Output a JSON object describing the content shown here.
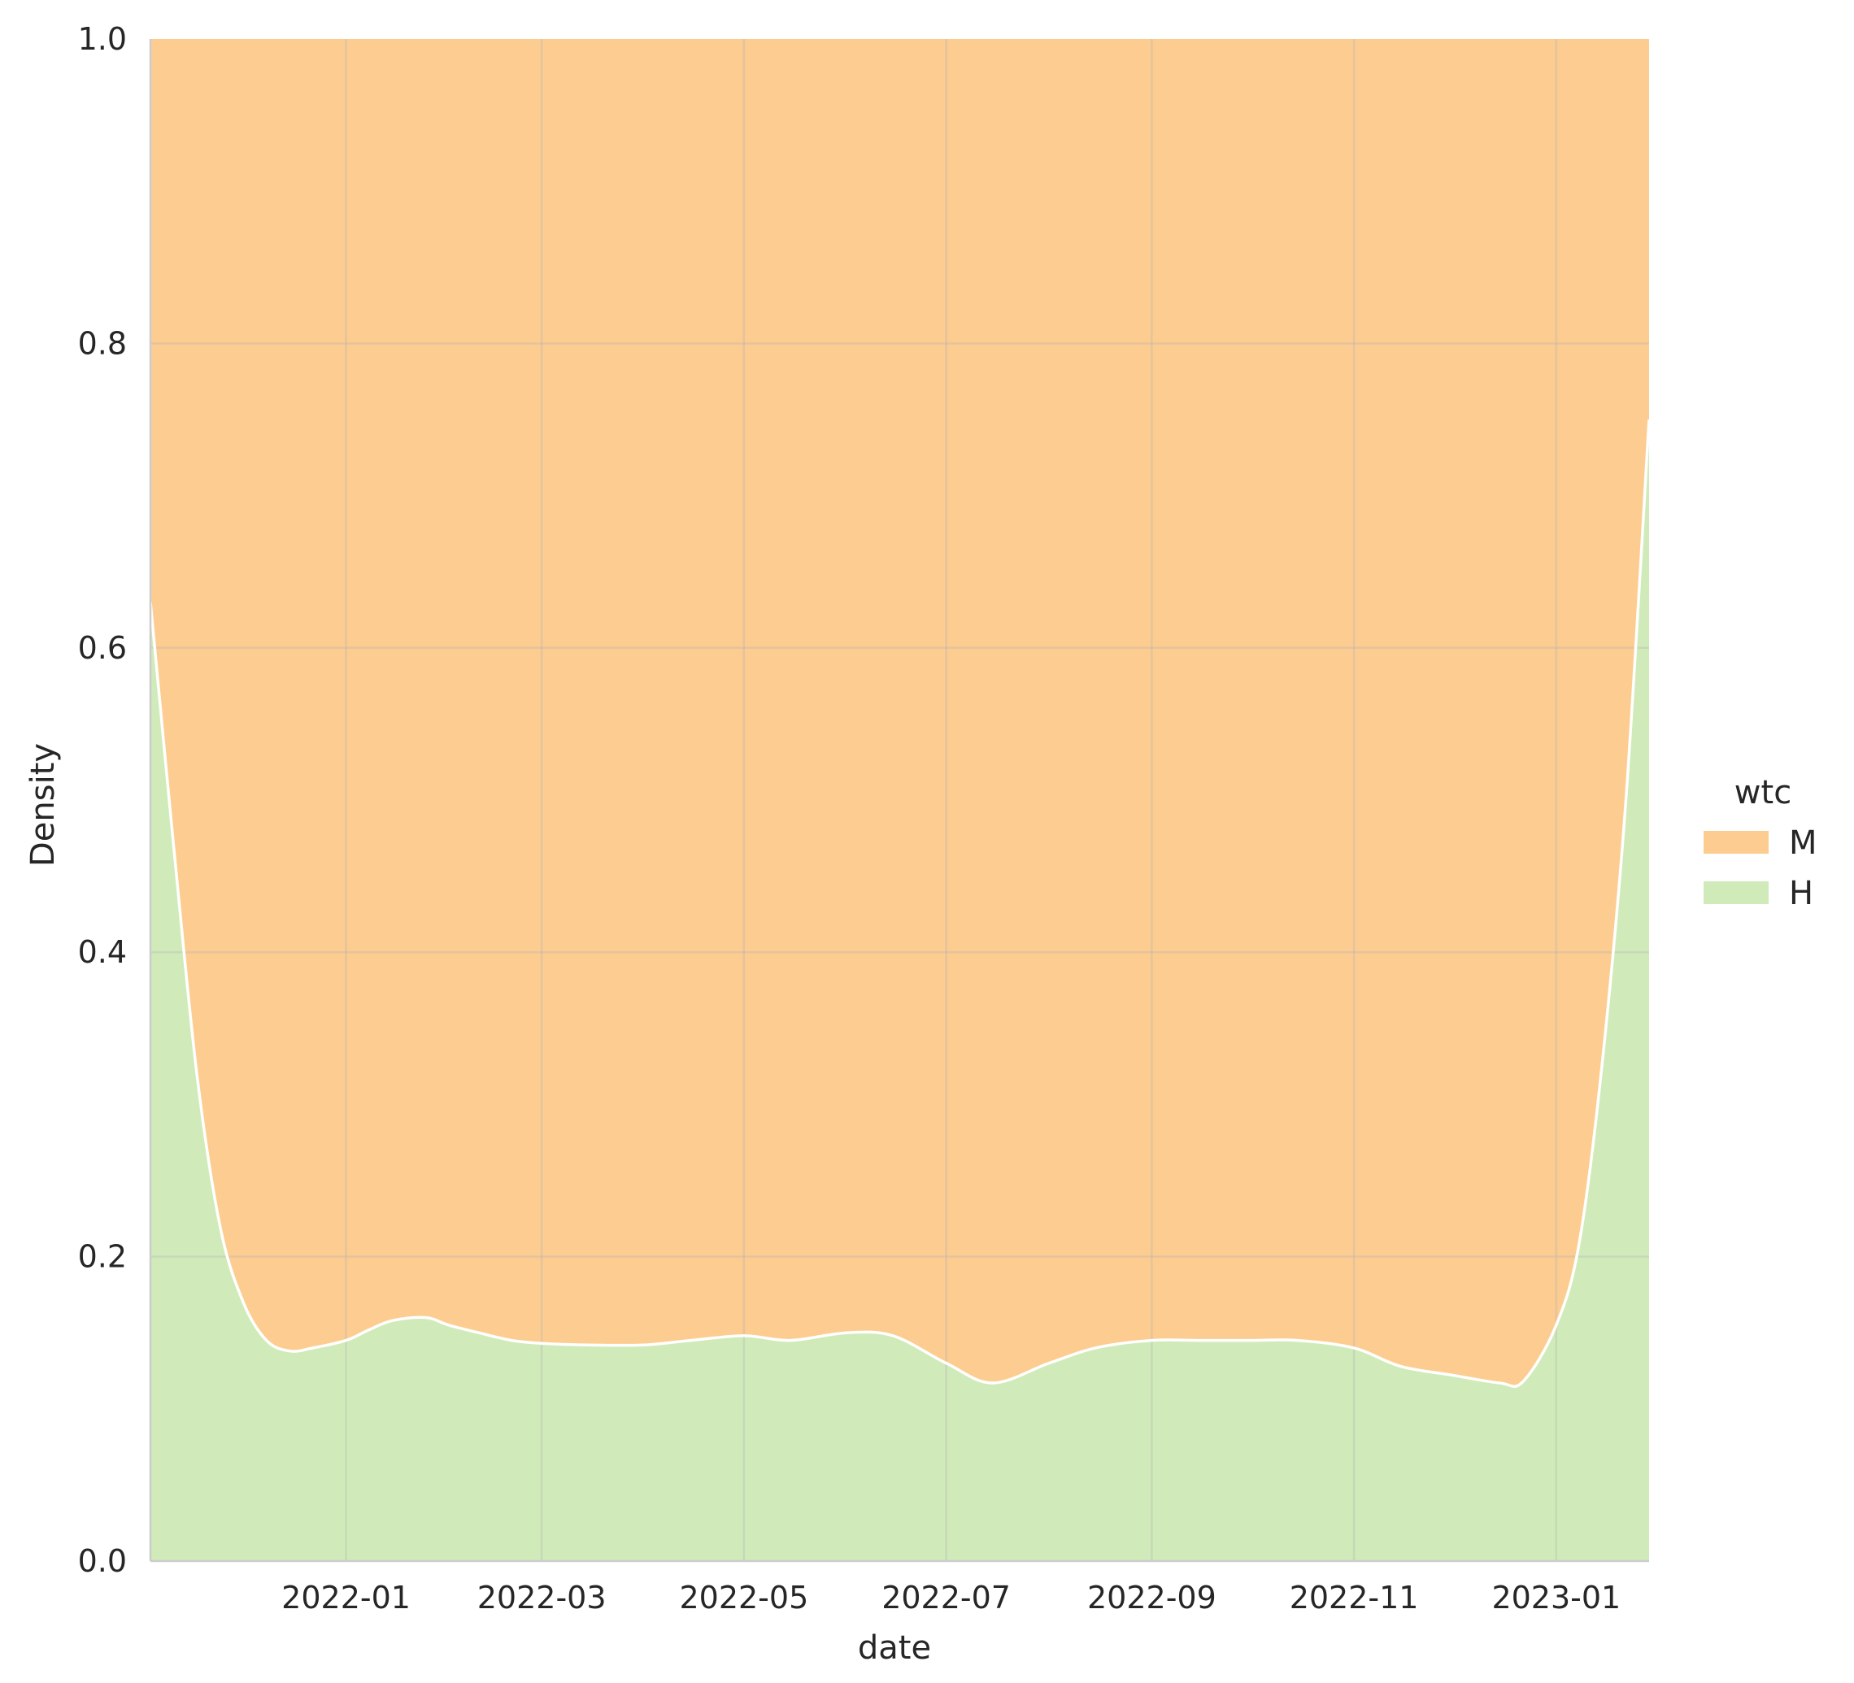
{
  "chart_data": {
    "type": "area",
    "stacked": true,
    "normalized": true,
    "xlabel": "date",
    "ylabel": "Density",
    "xlim": [
      "2021-11-03",
      "2023-01-29"
    ],
    "ylim": [
      0,
      1
    ],
    "yticks": [
      0.0,
      0.2,
      0.4,
      0.6,
      0.8,
      1.0
    ],
    "ytick_labels": [
      "0.0",
      "0.2",
      "0.4",
      "0.6",
      "0.8",
      "1.0"
    ],
    "xticks": [
      "2022-01-01",
      "2022-03-01",
      "2022-05-01",
      "2022-07-01",
      "2022-09-01",
      "2022-11-01",
      "2023-01-01"
    ],
    "xtick_labels": [
      "2022-01",
      "2022-03",
      "2022-05",
      "2022-07",
      "2022-09",
      "2022-11",
      "2023-01"
    ],
    "grid": true,
    "legend": {
      "title": "wtc",
      "position": "right"
    },
    "series": [
      {
        "name": "M",
        "color": "#fdcc90",
        "note_fill": "top"
      },
      {
        "name": "H",
        "color": "#d0ebb9",
        "x": [
          "2021-11-03",
          "2021-11-10",
          "2021-11-17",
          "2021-11-24",
          "2021-12-01",
          "2021-12-08",
          "2021-12-15",
          "2021-12-22",
          "2022-01-01",
          "2022-01-08",
          "2022-01-15",
          "2022-01-25",
          "2022-02-01",
          "2022-02-10",
          "2022-02-20",
          "2022-03-01",
          "2022-03-15",
          "2022-04-01",
          "2022-04-15",
          "2022-05-01",
          "2022-05-15",
          "2022-06-01",
          "2022-06-15",
          "2022-07-01",
          "2022-07-15",
          "2022-08-01",
          "2022-08-15",
          "2022-09-01",
          "2022-09-15",
          "2022-10-01",
          "2022-10-15",
          "2022-11-01",
          "2022-11-15",
          "2022-12-01",
          "2022-12-15",
          "2022-12-22",
          "2023-01-01",
          "2023-01-08",
          "2023-01-15",
          "2023-01-22",
          "2023-01-29"
        ],
        "values": [
          0.63,
          0.47,
          0.32,
          0.22,
          0.17,
          0.145,
          0.138,
          0.14,
          0.145,
          0.152,
          0.158,
          0.16,
          0.155,
          0.15,
          0.145,
          0.143,
          0.142,
          0.142,
          0.145,
          0.148,
          0.145,
          0.15,
          0.148,
          0.13,
          0.117,
          0.13,
          0.14,
          0.145,
          0.145,
          0.145,
          0.145,
          0.14,
          0.128,
          0.122,
          0.117,
          0.118,
          0.155,
          0.21,
          0.33,
          0.5,
          0.75
        ]
      }
    ]
  }
}
